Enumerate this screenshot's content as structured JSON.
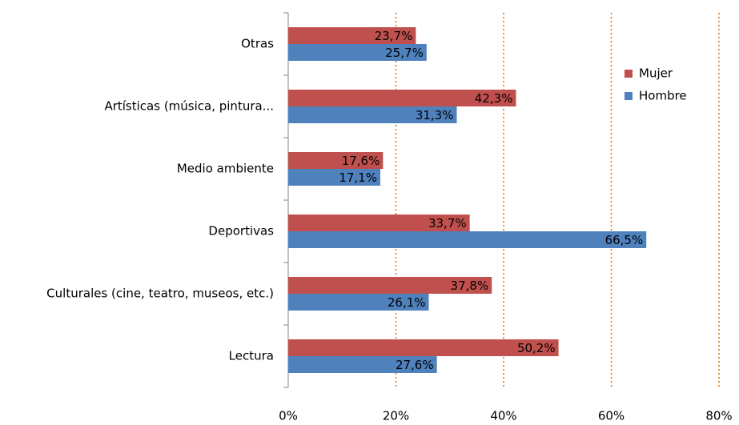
{
  "chart_data": {
    "type": "bar",
    "orientation": "horizontal",
    "categories": [
      "Otras",
      "Artísticas (música, pintura...",
      "Medio ambiente",
      "Deportivas",
      "Culturales (cine, teatro, museos, etc.)",
      "Lectura"
    ],
    "series": [
      {
        "name": "Mujer",
        "color": "#c0504d",
        "values": [
          23.7,
          42.3,
          17.6,
          33.7,
          37.8,
          50.2
        ],
        "value_labels": [
          "23,7%",
          "42,3%",
          "17,6%",
          "33,7%",
          "37,8%",
          "50,2%"
        ]
      },
      {
        "name": "Hombre",
        "color": "#4f81bd",
        "values": [
          25.7,
          31.3,
          17.1,
          66.5,
          26.1,
          27.6
        ],
        "value_labels": [
          "25,7%",
          "31,3%",
          "17,1%",
          "66,5%",
          "26,1%",
          "27,6%"
        ]
      }
    ],
    "xlim": [
      0,
      80
    ],
    "xticks": [
      {
        "value": 0,
        "label": "0%"
      },
      {
        "value": 20,
        "label": "20%"
      },
      {
        "value": 40,
        "label": "40%"
      },
      {
        "value": 60,
        "label": "60%"
      },
      {
        "value": 80,
        "label": "80%"
      }
    ],
    "grid": true,
    "grid_color": "#e46c0a",
    "legend": "right"
  }
}
